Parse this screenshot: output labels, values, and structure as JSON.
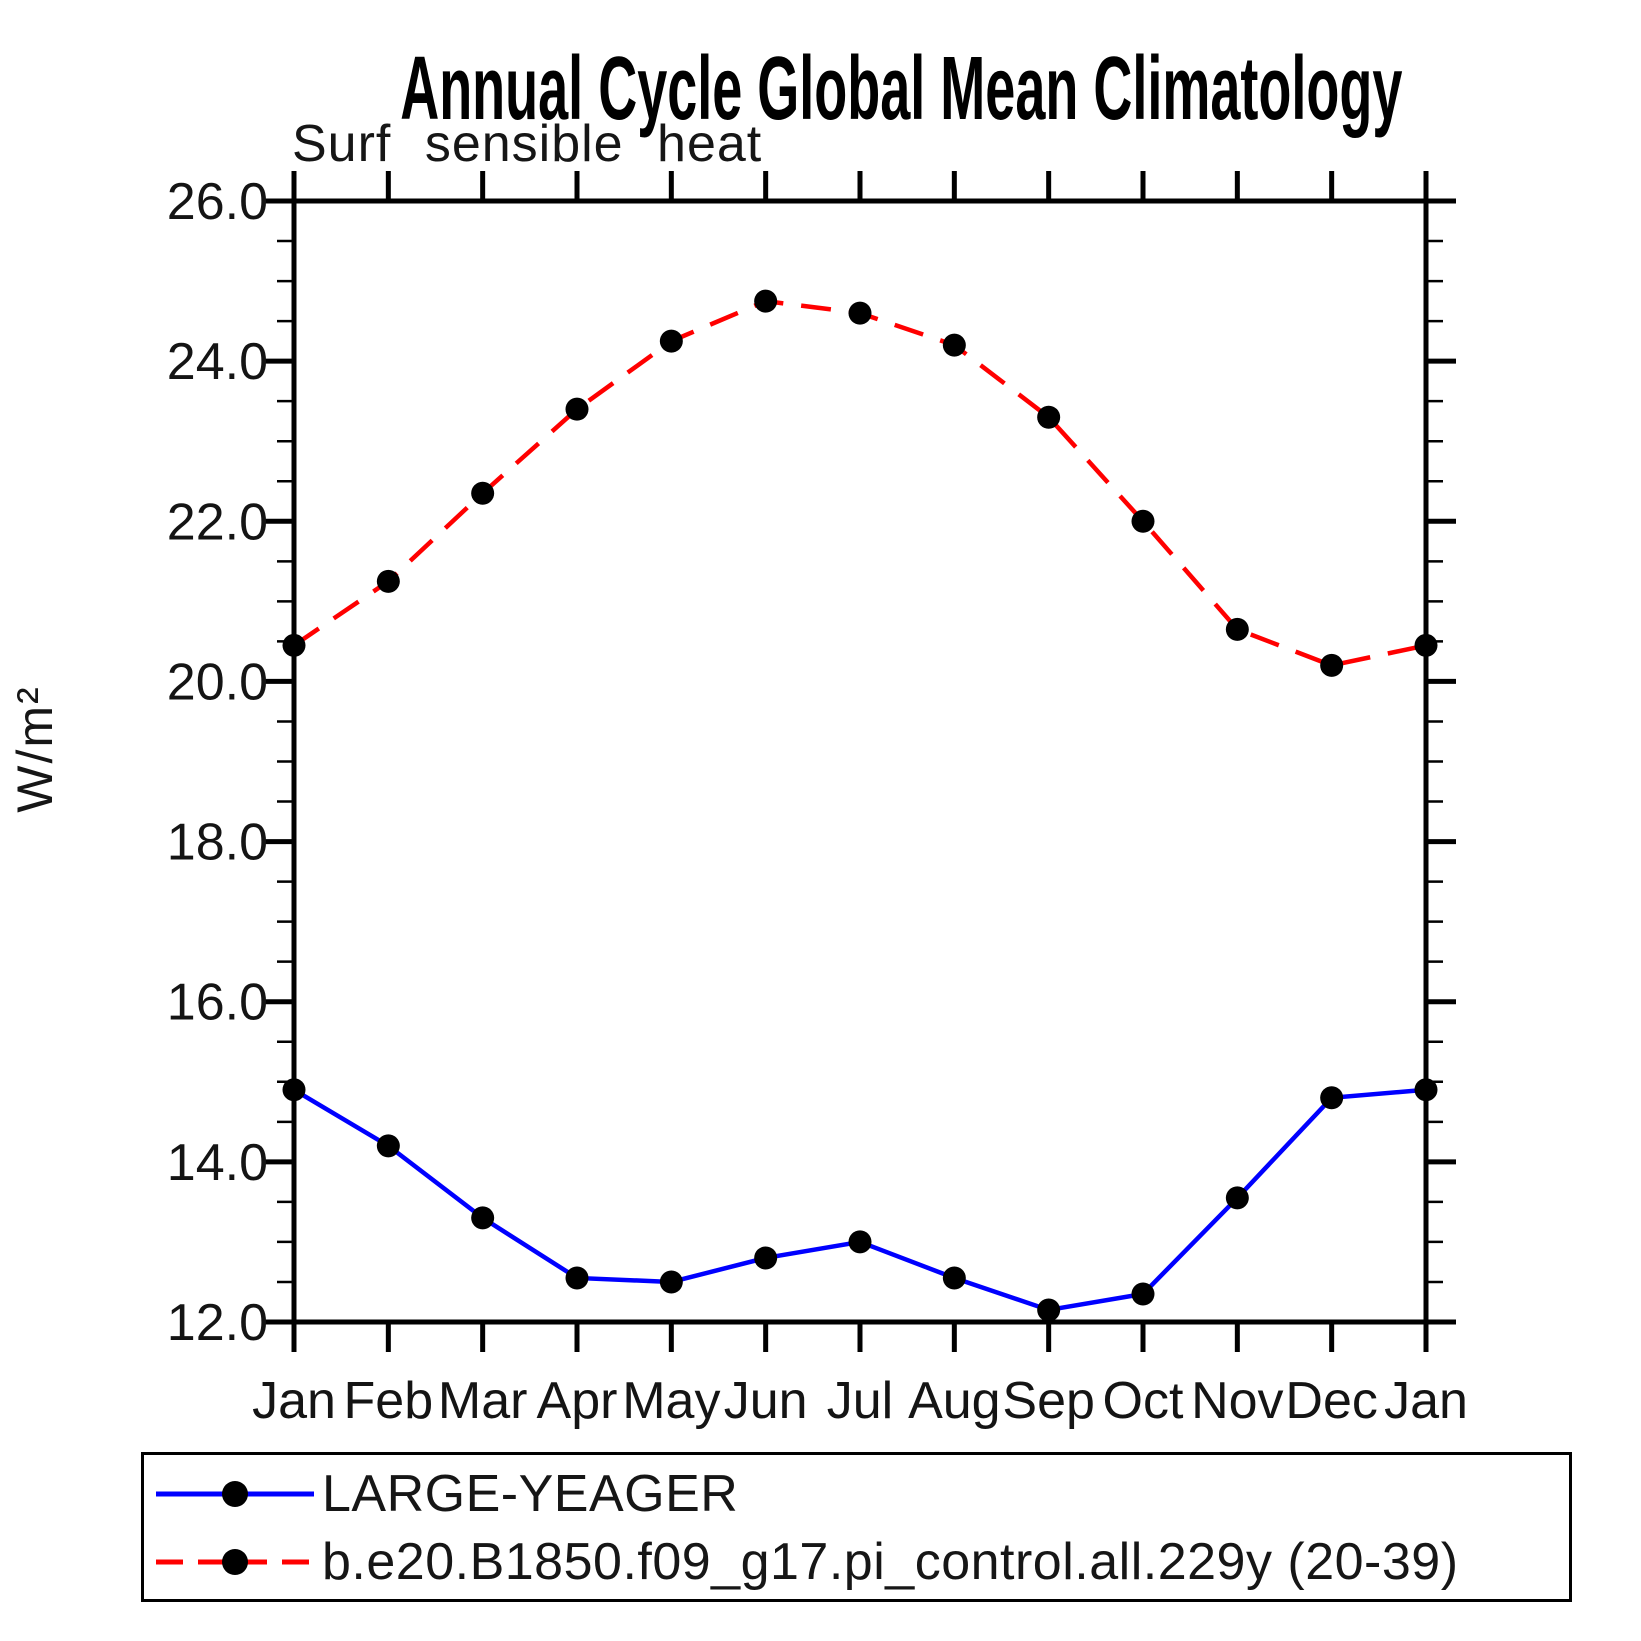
{
  "header": {
    "title": "Annual Cycle Global Mean Climatology",
    "subtitle": "Surf sensible heat"
  },
  "chart_data": {
    "type": "line",
    "title": "Annual Cycle Global Mean Climatology",
    "subtitle": "Surf sensible heat",
    "xlabel": "",
    "ylabel": "W/m²",
    "x_tick_labels": [
      "Jan",
      "Feb",
      "Mar",
      "Apr",
      "May",
      "Jun",
      "Jul",
      "Aug",
      "Sep",
      "Oct",
      "Nov",
      "Dec",
      "Jan"
    ],
    "ylim": [
      12.0,
      26.0
    ],
    "y_major_step": 2.0,
    "y_minor_step": 0.5,
    "y_tick_labels": [
      "26.0",
      "24.0",
      "22.0",
      "20.0",
      "18.0",
      "16.0",
      "14.0",
      "12.0"
    ],
    "grid": false,
    "legend_position": "bottom",
    "axis_color": "#000000",
    "marker_color": "#000000",
    "series": [
      {
        "name": "LARGE-YEAGER",
        "color": "#0000ff",
        "line_style": "solid",
        "marker": "circle",
        "values": [
          14.9,
          14.2,
          13.3,
          12.55,
          12.5,
          12.8,
          13.0,
          12.55,
          12.15,
          12.35,
          13.55,
          14.8,
          14.9
        ]
      },
      {
        "name": "b.e20.B1850.f09_g17.pi_control.all.229y (20-39)",
        "color": "#ff0000",
        "line_style": "dashed",
        "marker": "circle",
        "values": [
          20.45,
          21.25,
          22.35,
          23.4,
          24.25,
          24.75,
          24.6,
          24.2,
          23.3,
          22.0,
          20.65,
          20.2,
          20.45
        ]
      }
    ]
  }
}
